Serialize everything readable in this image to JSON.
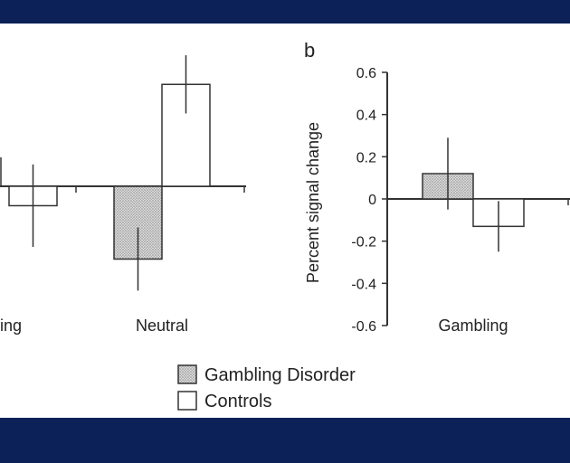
{
  "colors": {
    "frame_band": "#0b2157",
    "axis": "#333333",
    "disorder_fill_pattern": "dotted-gray",
    "controls_fill": "#ffffff"
  },
  "panel_b_label": "b",
  "legend": {
    "items": [
      {
        "label": "Gambling Disorder",
        "swatch": "dotted-gray"
      },
      {
        "label": "Controls",
        "swatch": "white"
      }
    ]
  },
  "chart_data": [
    {
      "type": "bar",
      "panel": "a",
      "categories": [
        "ling",
        "Neutral"
      ],
      "series": [
        {
          "name": "Gambling Disorder",
          "values": [
            null,
            -0.3
          ],
          "error": [
            null,
            0.13
          ]
        },
        {
          "name": "Controls",
          "values": [
            -0.08,
            0.42
          ],
          "error": [
            0.17,
            0.12
          ]
        }
      ],
      "ylim": [
        -0.6,
        0.6
      ]
    },
    {
      "type": "bar",
      "panel": "b",
      "categories": [
        "Gambling"
      ],
      "series": [
        {
          "name": "Gambling Disorder",
          "values": [
            0.12
          ],
          "error": [
            0.17
          ]
        },
        {
          "name": "Controls",
          "values": [
            -0.13
          ],
          "error": [
            0.12
          ]
        }
      ],
      "ylabel": "Percent signal change",
      "ylim": [
        -0.6,
        0.6
      ],
      "yticks": [
        "0.6",
        "0.4",
        "0.2",
        "0",
        "-0.2",
        "-0.4",
        "-0.6"
      ]
    }
  ]
}
